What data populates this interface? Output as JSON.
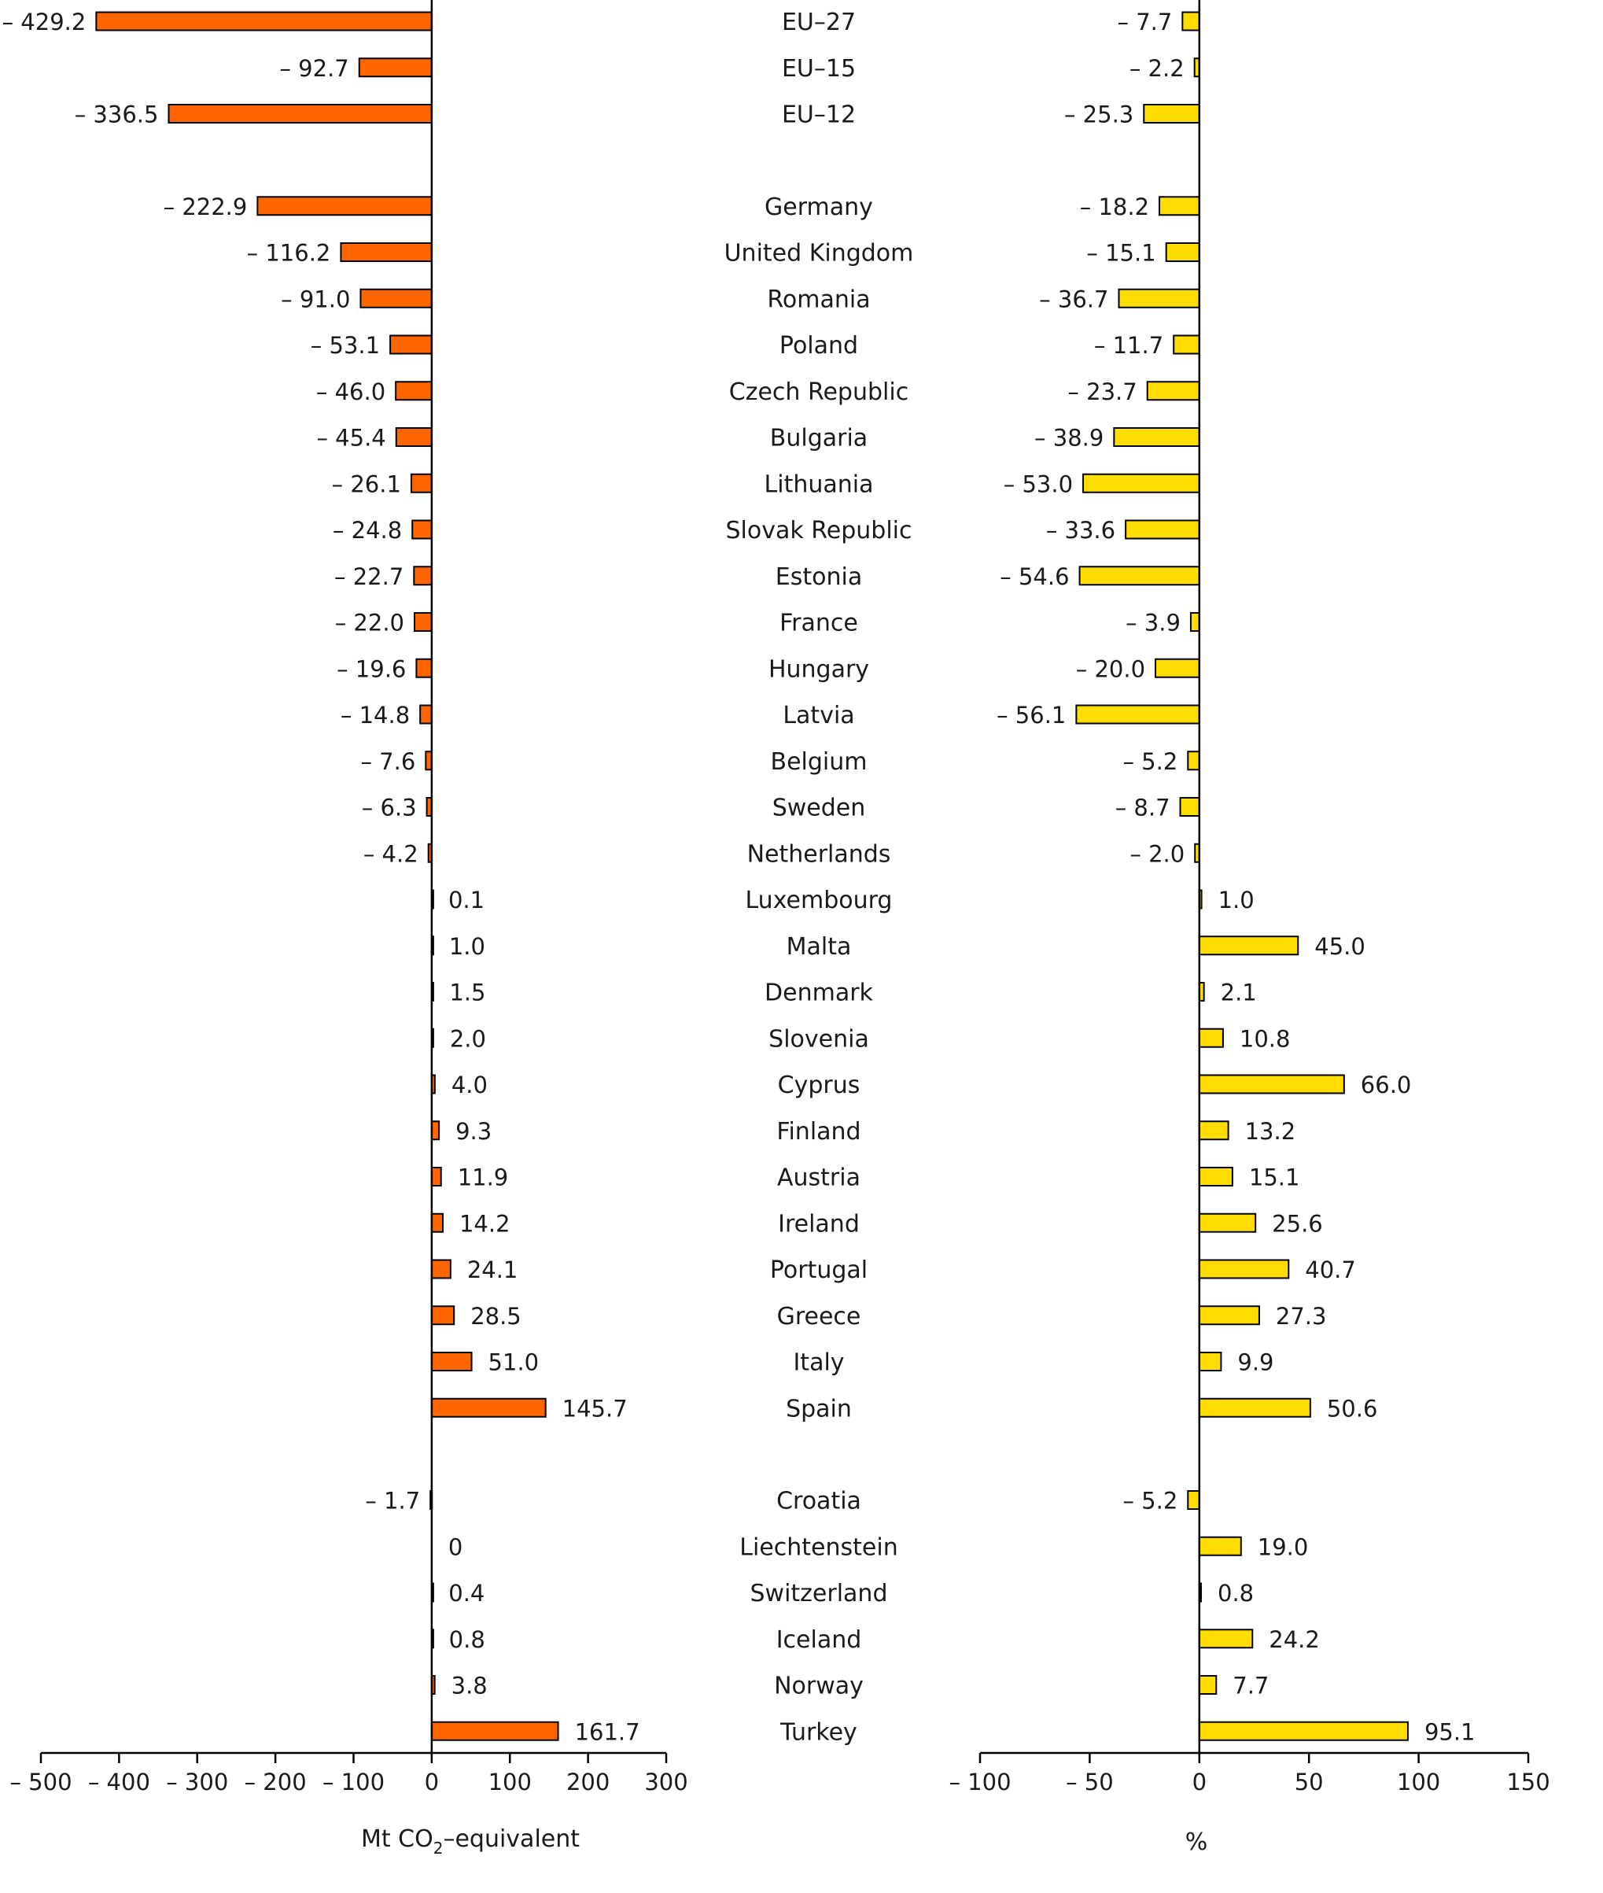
{
  "chart_data": [
    {
      "type": "bar",
      "orientation": "horizontal",
      "title": "",
      "xlabel": "Mt CO2-equivalent",
      "xlabel_main": "Mt CO",
      "xlabel_sub": "2",
      "xlabel_rest": "–equivalent",
      "xlim": [
        -500,
        300
      ],
      "ticks": [
        -500,
        -400,
        -300,
        -200,
        -100,
        0,
        100,
        200,
        300
      ],
      "tick_labels": [
        "– 500",
        "– 400",
        "– 300",
        "– 200",
        "– 100",
        "0",
        "100",
        "200",
        "300"
      ],
      "grid": false,
      "color": "#FF6600",
      "categories": [
        "EU–27",
        "EU–15",
        "EU–12",
        "Germany",
        "United Kingdom",
        "Romania",
        "Poland",
        "Czech Republic",
        "Bulgaria",
        "Lithuania",
        "Slovak Republic",
        "Estonia",
        "France",
        "Hungary",
        "Latvia",
        "Belgium",
        "Sweden",
        "Netherlands",
        "Luxembourg",
        "Malta",
        "Denmark",
        "Slovenia",
        "Cyprus",
        "Finland",
        "Austria",
        "Ireland",
        "Portugal",
        "Greece",
        "Italy",
        "Spain",
        "Croatia",
        "Liechtenstein",
        "Switzerland",
        "Iceland",
        "Norway",
        "Turkey"
      ],
      "values": [
        -429.2,
        -92.7,
        -336.5,
        -222.9,
        -116.2,
        -91.0,
        -53.1,
        -46.0,
        -45.4,
        -26.1,
        -24.8,
        -22.7,
        -22.0,
        -19.6,
        -14.8,
        -7.6,
        -6.3,
        -4.2,
        0.1,
        1.0,
        1.5,
        2.0,
        4.0,
        9.3,
        11.9,
        14.2,
        24.1,
        28.5,
        51.0,
        145.7,
        -1.7,
        0,
        0.4,
        0.8,
        3.8,
        161.7
      ],
      "value_labels": [
        "– 429.2",
        "– 92.7",
        "– 336.5",
        "– 222.9",
        "– 116.2",
        "– 91.0",
        "– 53.1",
        "– 46.0",
        "– 45.4",
        "– 26.1",
        "– 24.8",
        "– 22.7",
        "– 22.0",
        "– 19.6",
        "– 14.8",
        "– 7.6",
        "– 6.3",
        "– 4.2",
        "0.1",
        "1.0",
        "1.5",
        "2.0",
        "4.0",
        "9.3",
        "11.9",
        "14.2",
        "24.1",
        "28.5",
        "51.0",
        "145.7",
        "– 1.7",
        "0",
        "0.4",
        "0.8",
        "3.8",
        "161.7"
      ]
    },
    {
      "type": "bar",
      "orientation": "horizontal",
      "title": "",
      "xlabel": "%",
      "xlim": [
        -100,
        150
      ],
      "ticks": [
        -100,
        -50,
        0,
        50,
        100,
        150
      ],
      "tick_labels": [
        "– 100",
        "– 50",
        "0",
        "50",
        "100",
        "150"
      ],
      "grid": false,
      "color": "#FFDD00",
      "categories": [
        "EU–27",
        "EU–15",
        "EU–12",
        "Germany",
        "United Kingdom",
        "Romania",
        "Poland",
        "Czech Republic",
        "Bulgaria",
        "Lithuania",
        "Slovak Republic",
        "Estonia",
        "France",
        "Hungary",
        "Latvia",
        "Belgium",
        "Sweden",
        "Netherlands",
        "Luxembourg",
        "Malta",
        "Denmark",
        "Slovenia",
        "Cyprus",
        "Finland",
        "Austria",
        "Ireland",
        "Portugal",
        "Greece",
        "Italy",
        "Spain",
        "Croatia",
        "Liechtenstein",
        "Switzerland",
        "Iceland",
        "Norway",
        "Turkey"
      ],
      "values": [
        -7.7,
        -2.2,
        -25.3,
        -18.2,
        -15.1,
        -36.7,
        -11.7,
        -23.7,
        -38.9,
        -53.0,
        -33.6,
        -54.6,
        -3.9,
        -20.0,
        -56.1,
        -5.2,
        -8.7,
        -2.0,
        1.0,
        45.0,
        2.1,
        10.8,
        66.0,
        13.2,
        15.1,
        25.6,
        40.7,
        27.3,
        9.9,
        50.6,
        -5.2,
        19.0,
        0.8,
        24.2,
        7.7,
        95.1
      ],
      "value_labels": [
        "– 7.7",
        "– 2.2",
        "– 25.3",
        "– 18.2",
        "– 15.1",
        "– 36.7",
        "– 11.7",
        "– 23.7",
        "– 38.9",
        "– 53.0",
        "– 33.6",
        "– 54.6",
        "– 3.9",
        "– 20.0",
        "– 56.1",
        "– 5.2",
        "– 8.7",
        "– 2.0",
        "1.0",
        "45.0",
        "2.1",
        "10.8",
        "66.0",
        "13.2",
        "15.1",
        "25.6",
        "40.7",
        "27.3",
        "9.9",
        "50.6",
        "– 5.2",
        "19.0",
        "0.8",
        "24.2",
        "7.7",
        "95.1"
      ]
    }
  ]
}
